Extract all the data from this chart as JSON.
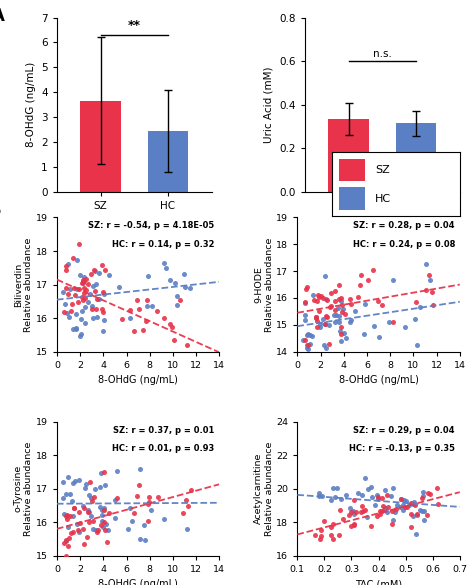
{
  "bar_sz_8ohdg": 3.65,
  "bar_hc_8ohdg": 2.45,
  "err_sz_8ohdg": 2.55,
  "err_hc_8ohdg": 1.65,
  "bar_sz_uric": 0.335,
  "bar_hc_uric": 0.315,
  "err_sz_uric": 0.075,
  "err_hc_uric": 0.058,
  "color_sz": "#e8334a",
  "color_hc": "#5b7fc4",
  "ylabel_8ohdg": "8-OHdG (ng/mL)",
  "ylabel_uric": "Uric Acid (mM)",
  "ylim_8ohdg": [
    0,
    7
  ],
  "ylim_uric": [
    0.0,
    0.8
  ],
  "yticks_8ohdg": [
    0,
    1,
    2,
    3,
    4,
    5,
    6,
    7
  ],
  "yticks_uric": [
    0.0,
    0.2,
    0.4,
    0.6,
    0.8
  ],
  "sig_8ohdg": "**",
  "sig_uric": "n.s.",
  "scatter_plots": [
    {
      "title_sz": "SZ: r = -0.54, p = 4.18E-05",
      "title_hc": "HC: r = 0.14, p = 0.32",
      "xlabel": "8-OHdG (ng/mL)",
      "ylabel": "Biliverdin\nRelative abundance",
      "xlim": [
        0,
        14
      ],
      "ylim": [
        15,
        19
      ],
      "yticks": [
        15,
        16,
        17,
        18,
        19
      ],
      "xticks": [
        0,
        2,
        4,
        6,
        8,
        10,
        12,
        14
      ],
      "sz_slope": -0.155,
      "sz_intercept": 17.15,
      "hc_slope": 0.038,
      "hc_intercept": 16.55
    },
    {
      "title_sz": "SZ: r = 0.28, p = 0.04",
      "title_hc": "HC: r = 0.24, p = 0.08",
      "xlabel": "8-OHdG (ng/mL)",
      "ylabel": "9-HODE\nRelative abundance",
      "xlim": [
        0,
        14
      ],
      "ylim": [
        14,
        19
      ],
      "yticks": [
        14,
        15,
        16,
        17,
        18,
        19
      ],
      "xticks": [
        0,
        2,
        4,
        6,
        8,
        10,
        12,
        14
      ],
      "sz_slope": 0.075,
      "sz_intercept": 15.45,
      "hc_slope": 0.065,
      "hc_intercept": 14.95
    },
    {
      "title_sz": "SZ: r = 0.37, p = 0.01",
      "title_hc": "HC: r = 0.01, p = 0.93",
      "xlabel": "8-OHdG (ng/mL)",
      "ylabel": "o-Tyrosine\nRelative abundance",
      "xlim": [
        0,
        14
      ],
      "ylim": [
        15,
        19
      ],
      "yticks": [
        15,
        16,
        17,
        18,
        19
      ],
      "xticks": [
        0,
        2,
        4,
        6,
        8,
        10,
        12,
        14
      ],
      "sz_slope": 0.095,
      "sz_intercept": 15.8,
      "hc_slope": 0.002,
      "hc_intercept": 16.55
    },
    {
      "title_sz": "SZ: r = 0.29, p = 0.04",
      "title_hc": "HC: r = -0.13, p = 0.35",
      "xlabel": "TAC (mM)",
      "ylabel": "Acetylcarnitine\nRelative abundance",
      "xlim": [
        0.1,
        0.7
      ],
      "ylim": [
        16,
        24
      ],
      "yticks": [
        16,
        18,
        20,
        22,
        24
      ],
      "xticks": [
        0.1,
        0.2,
        0.3,
        0.4,
        0.5,
        0.6,
        0.7
      ],
      "sz_slope": 4.2,
      "sz_intercept": 16.85,
      "hc_slope": -1.2,
      "hc_intercept": 19.75
    }
  ]
}
